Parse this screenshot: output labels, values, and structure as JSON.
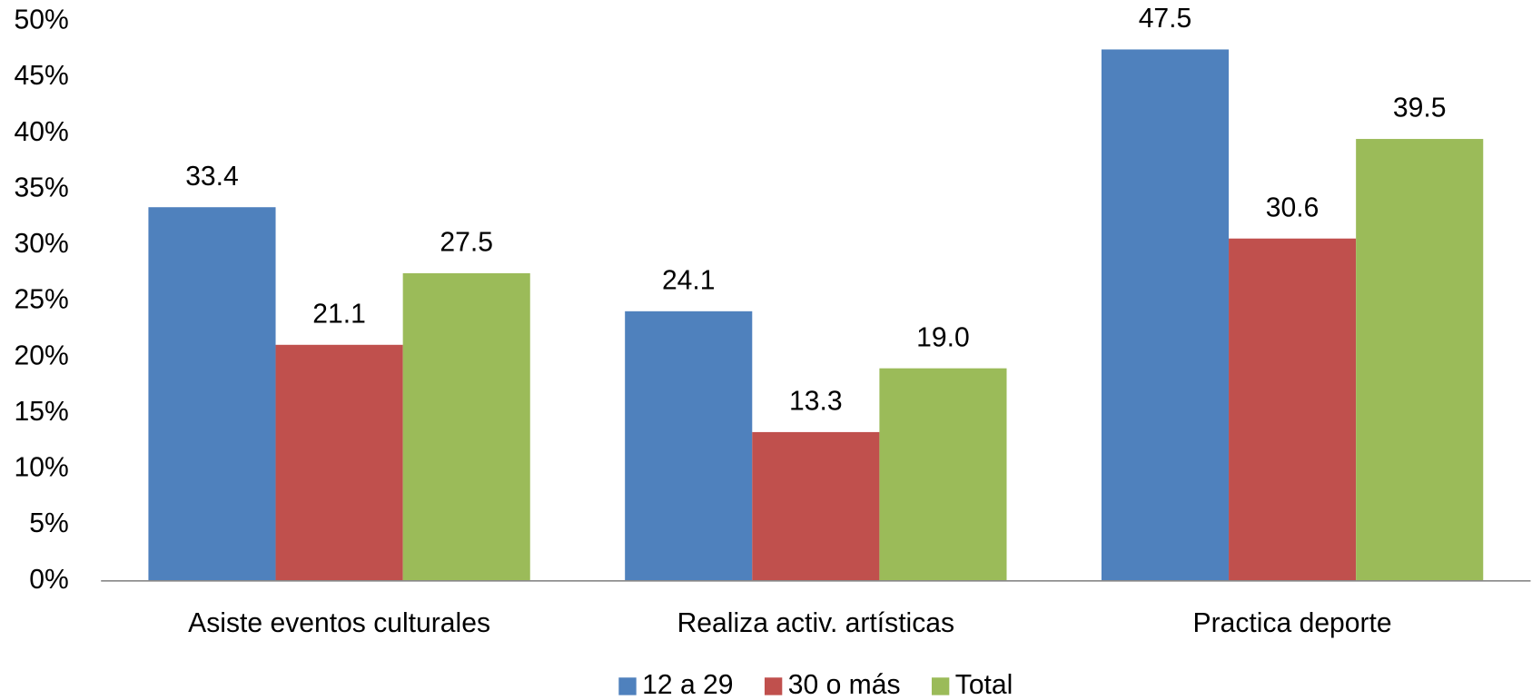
{
  "chart_data": {
    "type": "bar",
    "categories": [
      "Asiste eventos culturales",
      "Realiza activ. artísticas",
      "Practica deporte"
    ],
    "series": [
      {
        "name": "12 a 29",
        "color": "#4f81bd",
        "values": [
          33.4,
          24.1,
          47.5
        ],
        "value_labels": [
          "33.4",
          "24.1",
          "47.5"
        ]
      },
      {
        "name": "30 o más",
        "color": "#c0504d",
        "values": [
          21.1,
          13.3,
          30.6
        ],
        "value_labels": [
          "21.1",
          "13.3",
          "30.6"
        ]
      },
      {
        "name": "Total",
        "color": "#9bbb59",
        "values": [
          27.5,
          19.0,
          39.5
        ],
        "value_labels": [
          "27.5",
          "19.0",
          "39.5"
        ]
      }
    ],
    "ylim": [
      0,
      50
    ],
    "yticks": [
      {
        "value": 0,
        "label": "0%"
      },
      {
        "value": 5,
        "label": "5%"
      },
      {
        "value": 10,
        "label": "10%"
      },
      {
        "value": 15,
        "label": "15%"
      },
      {
        "value": 20,
        "label": "20%"
      },
      {
        "value": 25,
        "label": "25%"
      },
      {
        "value": 30,
        "label": "30%"
      },
      {
        "value": 35,
        "label": "35%"
      },
      {
        "value": 40,
        "label": "40%"
      },
      {
        "value": 45,
        "label": "45%"
      },
      {
        "value": 50,
        "label": "50%"
      }
    ],
    "grid": false,
    "legend": "bottom"
  }
}
